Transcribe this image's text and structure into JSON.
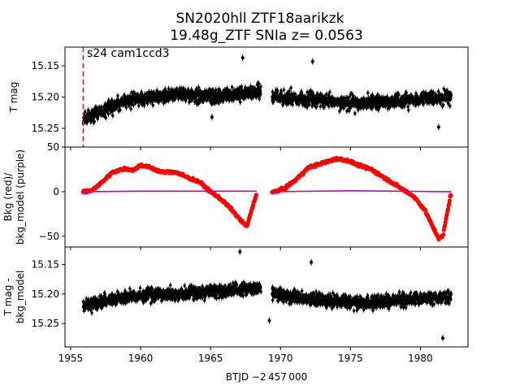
{
  "title": {
    "line1": "SN2020hll  ZTF18aarikzk",
    "line2": "19.48g_ZTF SNIa z= 0.0563"
  },
  "annotation": "s24 cam1ccd3",
  "xlabel": "BTJD −2 457 000",
  "chart_data": [
    {
      "type": "scatter",
      "panel": "top",
      "ylabel": "T mag",
      "ylim_inverted": [
        15.28,
        15.12
      ],
      "yticks": [
        "15.15",
        "15.20",
        "15.25"
      ],
      "xlim": [
        1954.6,
        1983.4
      ],
      "series": [
        {
          "color": "#000000",
          "marker": "point-with-errorbar",
          "segments": [
            {
              "x_range": [
                1955.9,
                1968.6
              ],
              "mean_y": [
                15.235,
                15.205,
                15.195,
                15.2,
                15.19
              ],
              "scatter": 0.02
            },
            {
              "x_range": [
                1969.4,
                1982.2
              ],
              "mean_y": [
                15.2,
                15.205,
                15.21,
                15.205,
                15.2
              ],
              "scatter": 0.02
            }
          ],
          "outliers": [
            [
              1967.3,
              15.137
            ],
            [
              1972.3,
              15.143
            ],
            [
              1965.1,
              15.232
            ],
            [
              1981.3,
              15.248
            ]
          ]
        }
      ],
      "vline": {
        "x": 1955.9,
        "color": "#d62728",
        "style": "dashed"
      }
    },
    {
      "type": "line",
      "panel": "middle",
      "ylabel": "Bkg (red)/\nbkg_model (purple)",
      "ylim": [
        -62,
        50
      ],
      "yticks": [
        "50",
        "0",
        "−50"
      ],
      "series": [
        {
          "color": "#ff0000",
          "marker": "point-with-errorbar",
          "points": [
            [
              1955.9,
              0
            ],
            [
              1956.5,
              1
            ],
            [
              1957.2,
              10
            ],
            [
              1958.0,
              22
            ],
            [
              1958.9,
              26
            ],
            [
              1959.5,
              24
            ],
            [
              1960.0,
              30
            ],
            [
              1960.7,
              27
            ],
            [
              1961.5,
              22
            ],
            [
              1962.5,
              22
            ],
            [
              1963.2,
              17
            ],
            [
              1964.2,
              11
            ],
            [
              1965.0,
              0
            ],
            [
              1965.8,
              -9
            ],
            [
              1966.5,
              -20
            ],
            [
              1967.2,
              -33
            ],
            [
              1967.6,
              -39
            ],
            [
              1967.9,
              -22
            ],
            [
              1968.3,
              -2
            ],
            [
              1969.4,
              -1
            ],
            [
              1970.2,
              3
            ],
            [
              1971.0,
              12
            ],
            [
              1972.0,
              27
            ],
            [
              1973.0,
              32
            ],
            [
              1974.0,
              37
            ],
            [
              1974.8,
              35
            ],
            [
              1975.5,
              30
            ],
            [
              1976.5,
              25
            ],
            [
              1977.5,
              15
            ],
            [
              1978.5,
              5
            ],
            [
              1979.5,
              -5
            ],
            [
              1980.3,
              -20
            ],
            [
              1980.9,
              -40
            ],
            [
              1981.3,
              -52
            ],
            [
              1981.6,
              -50
            ],
            [
              1981.9,
              -25
            ],
            [
              1982.2,
              0
            ]
          ],
          "scatter": 2
        },
        {
          "color": "#bf00bf",
          "style": "line",
          "points": [
            [
              1955.9,
              0
            ],
            [
              1960,
              0.5
            ],
            [
              1968.3,
              0.6
            ],
            [
              1969.4,
              0
            ],
            [
              1975,
              1
            ],
            [
              1982.2,
              0
            ]
          ]
        }
      ]
    },
    {
      "type": "scatter",
      "panel": "bottom",
      "ylabel": "T mag -\nbkg_model",
      "ylim_inverted": [
        15.29,
        15.12
      ],
      "yticks": [
        "15.15",
        "15.20",
        "15.25"
      ],
      "series": [
        {
          "color": "#000000",
          "marker": "point-with-errorbar",
          "segments": [
            {
              "x_range": [
                1955.9,
                1968.6
              ],
              "mean_y": [
                15.22,
                15.205,
                15.2,
                15.195,
                15.19
              ],
              "scatter": 0.02
            },
            {
              "x_range": [
                1969.4,
                1982.2
              ],
              "mean_y": [
                15.2,
                15.21,
                15.215,
                15.21,
                15.205
              ],
              "scatter": 0.02
            }
          ],
          "outliers": [
            [
              1967.1,
              15.128
            ],
            [
              1972.2,
              15.146
            ],
            [
              1981.6,
              15.275
            ],
            [
              1969.2,
              15.245
            ]
          ]
        }
      ]
    }
  ],
  "xaxis": {
    "ticks": [
      1955,
      1960,
      1965,
      1970,
      1975,
      1980
    ],
    "tick_labels": [
      "1955",
      "1960",
      "1965",
      "1970",
      "1975",
      "1980"
    ]
  }
}
